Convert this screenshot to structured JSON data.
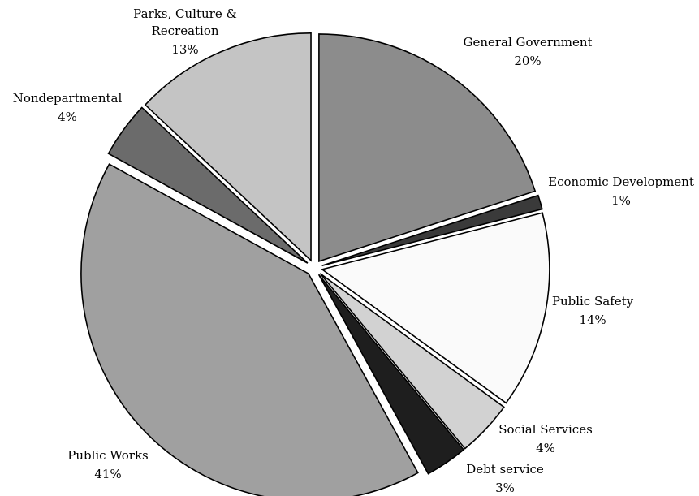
{
  "chart_data": {
    "type": "pie",
    "title": "",
    "legend": "none",
    "slices": [
      {
        "label": "General Government",
        "value": 20,
        "value_label": "20%",
        "color": "#8c8c8c"
      },
      {
        "label": "Economic Development",
        "value": 1,
        "value_label": "1%",
        "color": "#3a3a3a"
      },
      {
        "label": "Public Safety",
        "value": 14,
        "value_label": "14%",
        "color": "#fafafa"
      },
      {
        "label": "Social Services",
        "value": 4,
        "value_label": "4%",
        "color": "#d2d2d2"
      },
      {
        "label": "Debt service",
        "value": 3,
        "value_label": "3%",
        "color": "#1e1e1e"
      },
      {
        "label": "Public Works",
        "value": 41,
        "value_label": "41%",
        "color": "#a0a0a0"
      },
      {
        "label": "Nondepartmental",
        "value": 4,
        "value_label": "4%",
        "color": "#6b6b6b"
      },
      {
        "label": "Parks, Culture & Recreation",
        "value": 13,
        "value_label": "13%",
        "color": "#c4c4c4"
      }
    ]
  }
}
